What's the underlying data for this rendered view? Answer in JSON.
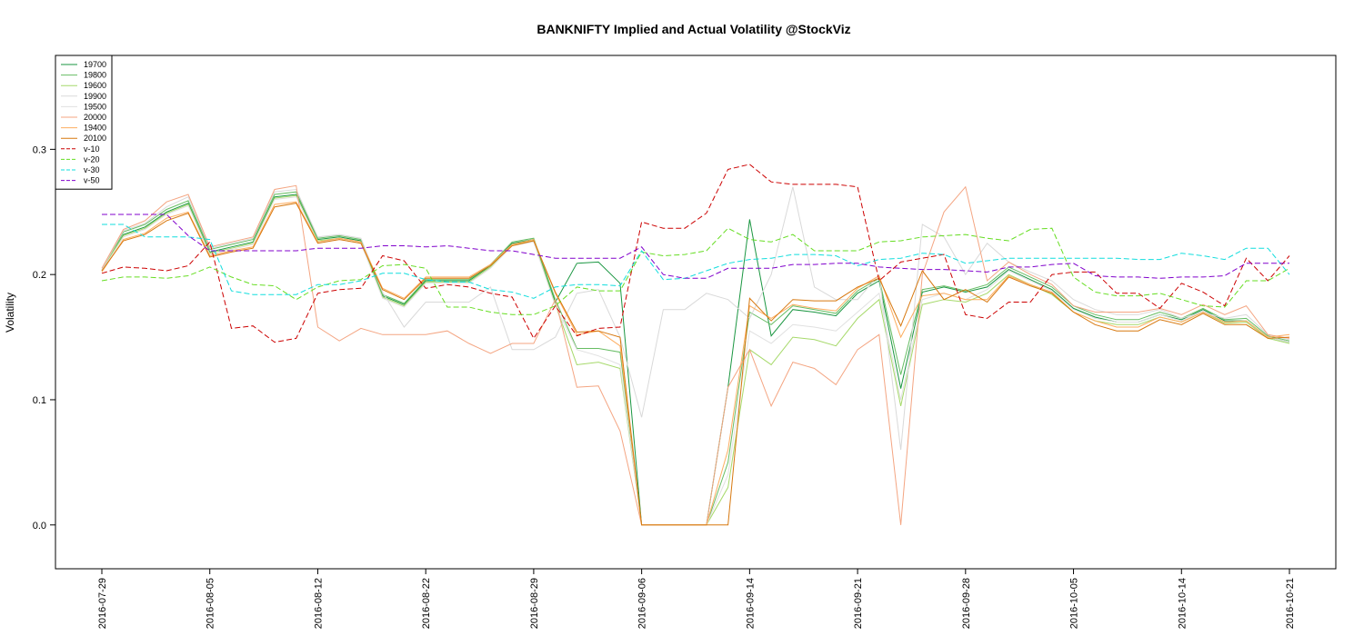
{
  "chart_data": {
    "type": "line",
    "title": "BANKNIFTY Implied and Actual Volatility @StockViz",
    "xlabel": "",
    "ylabel": "Volatility",
    "ylim": [
      -0.035,
      0.375
    ],
    "yticks": [
      0.0,
      0.1,
      0.2,
      0.3
    ],
    "ytick_labels": [
      "0.0",
      "0.1",
      "0.2",
      "0.3"
    ],
    "grid": false,
    "legend_position": "top-left",
    "x": [
      "2016-07-29",
      "2016-08-01",
      "2016-08-02",
      "2016-08-03",
      "2016-08-04",
      "2016-08-05",
      "2016-08-08",
      "2016-08-09",
      "2016-08-10",
      "2016-08-11",
      "2016-08-12",
      "2016-08-16",
      "2016-08-17",
      "2016-08-18",
      "2016-08-19",
      "2016-08-22",
      "2016-08-23",
      "2016-08-24",
      "2016-08-25",
      "2016-08-26",
      "2016-08-29",
      "2016-08-30",
      "2016-08-31",
      "2016-09-01",
      "2016-09-02",
      "2016-09-06",
      "2016-09-07",
      "2016-09-08",
      "2016-09-09",
      "2016-09-12",
      "2016-09-14",
      "2016-09-15",
      "2016-09-16",
      "2016-09-19",
      "2016-09-20",
      "2016-09-21",
      "2016-09-22",
      "2016-09-23",
      "2016-09-26",
      "2016-09-27",
      "2016-09-28",
      "2016-09-29",
      "2016-09-30",
      "2016-10-03",
      "2016-10-04",
      "2016-10-05",
      "2016-10-06",
      "2016-10-07",
      "2016-10-10",
      "2016-10-13",
      "2016-10-14",
      "2016-10-17",
      "2016-10-18",
      "2016-10-19",
      "2016-10-20",
      "2016-10-21"
    ],
    "xtick_labels": [
      "2016-07-29",
      "2016-08-05",
      "2016-08-12",
      "2016-08-22",
      "2016-08-29",
      "2016-09-06",
      "2016-09-14",
      "2016-09-21",
      "2016-09-28",
      "2016-10-05",
      "2016-10-14",
      "2016-10-21"
    ],
    "xtick_indices": [
      0,
      5,
      10,
      15,
      20,
      25,
      30,
      35,
      40,
      45,
      50,
      55
    ],
    "series": [
      {
        "name": "19700",
        "color": "#1a9641",
        "dash": "",
        "values": [
          0.203,
          0.232,
          0.238,
          0.25,
          0.257,
          0.218,
          0.222,
          0.226,
          0.262,
          0.264,
          0.228,
          0.23,
          0.227,
          0.183,
          0.176,
          0.195,
          0.195,
          0.195,
          0.207,
          0.225,
          0.228,
          0.178,
          0.209,
          0.21,
          0.193,
          0.0,
          0.0,
          0.0,
          0.0,
          0.11,
          0.244,
          0.151,
          0.172,
          0.17,
          0.167,
          0.185,
          0.195,
          0.109,
          0.186,
          0.19,
          0.186,
          0.19,
          0.204,
          0.196,
          0.188,
          0.173,
          0.166,
          0.162,
          0.162,
          0.168,
          0.164,
          0.172,
          0.163,
          0.163,
          0.15,
          0.146
        ]
      },
      {
        "name": "19800",
        "color": "#66bd63",
        "dash": "",
        "values": [
          0.203,
          0.234,
          0.24,
          0.252,
          0.259,
          0.22,
          0.224,
          0.228,
          0.264,
          0.266,
          0.229,
          0.231,
          0.228,
          0.184,
          0.177,
          0.196,
          0.196,
          0.196,
          0.208,
          0.226,
          0.229,
          0.18,
          0.141,
          0.141,
          0.138,
          0.0,
          0.0,
          0.0,
          0.0,
          0.05,
          0.17,
          0.16,
          0.175,
          0.172,
          0.169,
          0.187,
          0.197,
          0.12,
          0.188,
          0.191,
          0.187,
          0.192,
          0.206,
          0.198,
          0.19,
          0.175,
          0.168,
          0.164,
          0.164,
          0.17,
          0.165,
          0.173,
          0.164,
          0.165,
          0.151,
          0.147
        ]
      },
      {
        "name": "19600",
        "color": "#a6d96a",
        "dash": "",
        "values": [
          0.204,
          0.231,
          0.237,
          0.249,
          0.256,
          0.217,
          0.221,
          0.225,
          0.261,
          0.263,
          0.227,
          0.229,
          0.226,
          0.182,
          0.175,
          0.194,
          0.194,
          0.194,
          0.206,
          0.224,
          0.227,
          0.176,
          0.128,
          0.13,
          0.125,
          0.0,
          0.0,
          0.0,
          0.0,
          0.03,
          0.14,
          0.128,
          0.15,
          0.148,
          0.143,
          0.165,
          0.18,
          0.095,
          0.176,
          0.18,
          0.178,
          0.185,
          0.2,
          0.192,
          0.184,
          0.17,
          0.163,
          0.16,
          0.16,
          0.166,
          0.162,
          0.17,
          0.161,
          0.162,
          0.149,
          0.145
        ]
      },
      {
        "name": "19900",
        "color": "#d9d9d9",
        "dash": "",
        "values": [
          0.204,
          0.235,
          0.241,
          0.254,
          0.262,
          0.221,
          0.225,
          0.229,
          0.266,
          0.268,
          0.23,
          0.232,
          0.229,
          0.186,
          0.158,
          0.178,
          0.178,
          0.178,
          0.19,
          0.14,
          0.14,
          0.15,
          0.185,
          0.188,
          0.15,
          0.086,
          0.172,
          0.172,
          0.185,
          0.18,
          0.165,
          0.2,
          0.27,
          0.19,
          0.18,
          0.18,
          0.2,
          0.06,
          0.24,
          0.23,
          0.2,
          0.225,
          0.21,
          0.202,
          0.195,
          0.18,
          0.172,
          0.168,
          0.168,
          0.172,
          0.165,
          0.17,
          0.165,
          0.168,
          0.152,
          0.148
        ]
      },
      {
        "name": "19500",
        "color": "#e0e0e0",
        "dash": "",
        "values": [
          0.203,
          0.23,
          0.236,
          0.248,
          0.255,
          0.216,
          0.22,
          0.224,
          0.26,
          0.262,
          0.226,
          0.228,
          0.225,
          0.181,
          0.174,
          0.193,
          0.193,
          0.193,
          0.205,
          0.223,
          0.226,
          0.175,
          0.14,
          0.135,
          0.128,
          0.0,
          0.0,
          0.0,
          0.0,
          0.04,
          0.155,
          0.145,
          0.16,
          0.158,
          0.155,
          0.17,
          0.185,
          0.1,
          0.18,
          0.185,
          0.18,
          0.188,
          0.203,
          0.195,
          0.187,
          0.172,
          0.165,
          0.162,
          0.162,
          0.168,
          0.163,
          0.171,
          0.162,
          0.163,
          0.15,
          0.146
        ]
      },
      {
        "name": "20000",
        "color": "#f4a582",
        "dash": "",
        "values": [
          0.205,
          0.236,
          0.243,
          0.258,
          0.264,
          0.222,
          0.226,
          0.23,
          0.268,
          0.271,
          0.158,
          0.147,
          0.157,
          0.152,
          0.152,
          0.152,
          0.155,
          0.145,
          0.137,
          0.145,
          0.145,
          0.18,
          0.11,
          0.111,
          0.075,
          0.0,
          0.0,
          0.0,
          0.0,
          0.11,
          0.14,
          0.095,
          0.13,
          0.125,
          0.112,
          0.14,
          0.152,
          0.0,
          0.2,
          0.25,
          0.27,
          0.195,
          0.21,
          0.2,
          0.192,
          0.175,
          0.17,
          0.17,
          0.17,
          0.173,
          0.168,
          0.176,
          0.168,
          0.175,
          0.152,
          0.149
        ]
      },
      {
        "name": "19400",
        "color": "#fdae61",
        "dash": "",
        "values": [
          0.202,
          0.228,
          0.233,
          0.245,
          0.25,
          0.215,
          0.219,
          0.222,
          0.256,
          0.258,
          0.226,
          0.229,
          0.226,
          0.189,
          0.181,
          0.198,
          0.198,
          0.198,
          0.208,
          0.224,
          0.228,
          0.185,
          0.152,
          0.155,
          0.143,
          0.0,
          0.0,
          0.0,
          0.0,
          0.06,
          0.175,
          0.165,
          0.176,
          0.173,
          0.171,
          0.189,
          0.199,
          0.15,
          0.183,
          0.185,
          0.18,
          0.18,
          0.199,
          0.192,
          0.186,
          0.17,
          0.163,
          0.158,
          0.158,
          0.166,
          0.162,
          0.17,
          0.162,
          0.163,
          0.15,
          0.152
        ]
      },
      {
        "name": "20100",
        "color": "#d7780f",
        "dash": "",
        "values": [
          0.203,
          0.227,
          0.232,
          0.243,
          0.249,
          0.214,
          0.218,
          0.221,
          0.254,
          0.257,
          0.225,
          0.228,
          0.225,
          0.188,
          0.18,
          0.197,
          0.197,
          0.197,
          0.207,
          0.223,
          0.227,
          0.186,
          0.154,
          0.155,
          0.15,
          0.0,
          0.0,
          0.0,
          0.0,
          0.0,
          0.181,
          0.163,
          0.18,
          0.179,
          0.179,
          0.19,
          0.197,
          0.159,
          0.203,
          0.18,
          0.188,
          0.178,
          0.198,
          0.191,
          0.185,
          0.17,
          0.16,
          0.155,
          0.155,
          0.164,
          0.16,
          0.169,
          0.16,
          0.16,
          0.149,
          0.15
        ]
      },
      {
        "name": "v-10",
        "color": "#cc0000",
        "dash": "6,3",
        "values": [
          0.201,
          0.206,
          0.205,
          0.203,
          0.207,
          0.226,
          0.157,
          0.159,
          0.146,
          0.149,
          0.185,
          0.188,
          0.189,
          0.215,
          0.211,
          0.189,
          0.192,
          0.19,
          0.185,
          0.182,
          0.149,
          0.175,
          0.151,
          0.157,
          0.158,
          0.242,
          0.237,
          0.237,
          0.249,
          0.284,
          0.288,
          0.274,
          0.272,
          0.272,
          0.272,
          0.27,
          0.195,
          0.21,
          0.213,
          0.216,
          0.168,
          0.165,
          0.178,
          0.178,
          0.2,
          0.202,
          0.202,
          0.185,
          0.185,
          0.173,
          0.193,
          0.186,
          0.175,
          0.213,
          0.195,
          0.215
        ]
      },
      {
        "name": "v-20",
        "color": "#66dd22",
        "dash": "6,3",
        "values": [
          0.195,
          0.198,
          0.198,
          0.197,
          0.199,
          0.206,
          0.198,
          0.192,
          0.191,
          0.18,
          0.19,
          0.195,
          0.196,
          0.207,
          0.208,
          0.205,
          0.174,
          0.174,
          0.17,
          0.168,
          0.168,
          0.175,
          0.19,
          0.187,
          0.187,
          0.218,
          0.215,
          0.216,
          0.219,
          0.237,
          0.228,
          0.226,
          0.232,
          0.219,
          0.219,
          0.219,
          0.226,
          0.227,
          0.23,
          0.231,
          0.232,
          0.229,
          0.227,
          0.236,
          0.237,
          0.198,
          0.186,
          0.183,
          0.183,
          0.185,
          0.18,
          0.175,
          0.174,
          0.195,
          0.195,
          0.205
        ]
      },
      {
        "name": "v-30",
        "color": "#11dddd",
        "dash": "6,3",
        "values": [
          0.24,
          0.24,
          0.23,
          0.23,
          0.23,
          0.228,
          0.187,
          0.184,
          0.184,
          0.184,
          0.192,
          0.192,
          0.195,
          0.201,
          0.201,
          0.196,
          0.194,
          0.194,
          0.188,
          0.186,
          0.181,
          0.19,
          0.192,
          0.192,
          0.191,
          0.219,
          0.196,
          0.197,
          0.203,
          0.209,
          0.212,
          0.213,
          0.216,
          0.216,
          0.215,
          0.207,
          0.212,
          0.213,
          0.217,
          0.216,
          0.209,
          0.211,
          0.213,
          0.213,
          0.213,
          0.213,
          0.213,
          0.213,
          0.212,
          0.212,
          0.217,
          0.215,
          0.212,
          0.221,
          0.221,
          0.2
        ]
      },
      {
        "name": "v-50",
        "color": "#8000cc",
        "dash": "6,3",
        "values": [
          0.248,
          0.248,
          0.248,
          0.248,
          0.231,
          0.219,
          0.219,
          0.219,
          0.219,
          0.219,
          0.221,
          0.221,
          0.221,
          0.223,
          0.223,
          0.222,
          0.223,
          0.221,
          0.219,
          0.219,
          0.216,
          0.213,
          0.213,
          0.213,
          0.213,
          0.222,
          0.2,
          0.197,
          0.197,
          0.205,
          0.205,
          0.205,
          0.208,
          0.208,
          0.209,
          0.209,
          0.206,
          0.205,
          0.204,
          0.204,
          0.203,
          0.202,
          0.206,
          0.206,
          0.208,
          0.209,
          0.199,
          0.198,
          0.198,
          0.197,
          0.198,
          0.198,
          0.199,
          0.209,
          0.209,
          0.209
        ]
      }
    ]
  }
}
